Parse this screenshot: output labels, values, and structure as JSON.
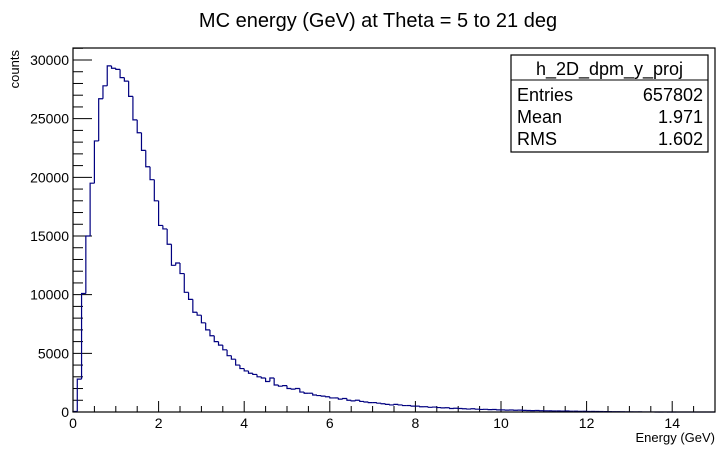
{
  "chart_data": {
    "type": "bar",
    "style": "step-histogram",
    "title": "MC energy (GeV) at Theta = 5 to 21 deg",
    "xlabel": "Energy (GeV)",
    "ylabel": "counts",
    "xlim": [
      0,
      15
    ],
    "ylim": [
      0,
      31000
    ],
    "grid": false,
    "bin_width": 0.1,
    "x_ticks": [
      0,
      2,
      4,
      6,
      8,
      10,
      12,
      14
    ],
    "x_tick_labels": [
      "0",
      "2",
      "4",
      "6",
      "8",
      "10",
      "12",
      "14"
    ],
    "y_ticks": [
      0,
      5000,
      10000,
      15000,
      20000,
      25000,
      30000
    ],
    "y_tick_labels": [
      "0",
      "5000",
      "10000",
      "15000",
      "20000",
      "25000",
      "30000"
    ],
    "line_color": "#000080",
    "series": [
      {
        "name": "h_2D_dpm_y_proj",
        "bin_start": 0,
        "values": [
          50,
          2800,
          10100,
          15000,
          19500,
          23100,
          26700,
          27800,
          29500,
          29300,
          29200,
          28500,
          28200,
          26900,
          24900,
          23800,
          22300,
          20900,
          19800,
          18000,
          15900,
          15600,
          14300,
          12500,
          12700,
          11800,
          10200,
          9600,
          8500,
          8250,
          7600,
          7000,
          6500,
          6000,
          5700,
          5300,
          4800,
          4500,
          4000,
          3700,
          3500,
          3300,
          3200,
          3000,
          2900,
          2600,
          2900,
          2300,
          2200,
          2250,
          2000,
          1950,
          2000,
          1700,
          1600,
          1600,
          1450,
          1400,
          1350,
          1300,
          1200,
          1200,
          1100,
          1150,
          1000,
          950,
          1000,
          900,
          850,
          800,
          800,
          750,
          700,
          650,
          600,
          650,
          600,
          550,
          550,
          500,
          500,
          450,
          450,
          400,
          420,
          380,
          350,
          360,
          300,
          320,
          300,
          280,
          250,
          280,
          240,
          220,
          230,
          200,
          210,
          180,
          180,
          160,
          170,
          150,
          160,
          140,
          130,
          120,
          130,
          110,
          100,
          100,
          90,
          90,
          80,
          90,
          70,
          70,
          60,
          60,
          50,
          50,
          40,
          40,
          30,
          30,
          25,
          20,
          20,
          15,
          10,
          10,
          8,
          6,
          5,
          4,
          3,
          2,
          2,
          1,
          0,
          0,
          0,
          0,
          0,
          0,
          0,
          0,
          0,
          0
        ]
      }
    ],
    "legend": {
      "position": "top-right",
      "name": "h_2D_dpm_y_proj",
      "rows": [
        {
          "label": "Entries",
          "value": "657802"
        },
        {
          "label": "Mean",
          "value": "1.971"
        },
        {
          "label": "RMS",
          "value": "1.602"
        }
      ]
    }
  }
}
